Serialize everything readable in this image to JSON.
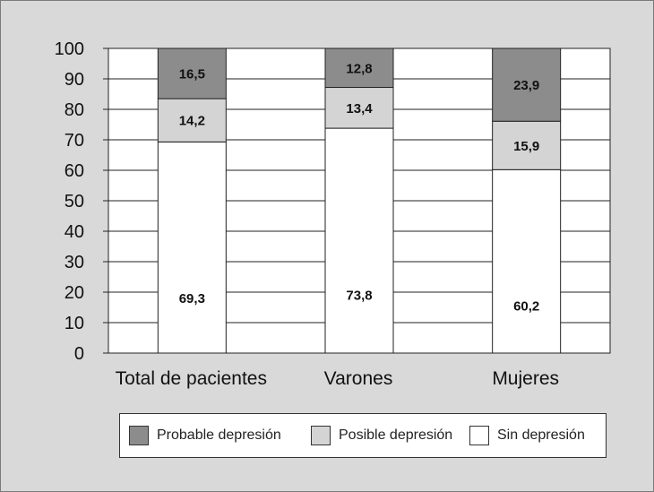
{
  "chart_data": {
    "type": "bar",
    "stacked": true,
    "categories": [
      "Total de pacientes",
      "Varones",
      "Mujeres"
    ],
    "series": [
      {
        "name": "Sin depresión",
        "values": [
          69.3,
          73.8,
          60.2
        ],
        "labels": [
          "69,3",
          "73,8",
          "60,2"
        ],
        "color": "#ffffff"
      },
      {
        "name": "Posible depresión",
        "values": [
          14.2,
          13.4,
          15.9
        ],
        "labels": [
          "14,2",
          "13,4",
          "15,9"
        ],
        "color": "#d4d4d4"
      },
      {
        "name": "Probable depresión",
        "values": [
          16.5,
          12.8,
          23.9
        ],
        "labels": [
          "16,5",
          "12,8",
          "23,9"
        ],
        "color": "#8c8c8c"
      }
    ],
    "ylim": [
      0,
      100
    ],
    "yticks": [
      "0",
      "10",
      "20",
      "30",
      "40",
      "50",
      "60",
      "70",
      "80",
      "90",
      "100"
    ],
    "title": "",
    "xlabel": "",
    "ylabel": "",
    "grid": true,
    "legend_position": "bottom",
    "legend_order": [
      "Probable depresión",
      "Posible depresión",
      "Sin depresión"
    ],
    "plot_background": "#ffffff",
    "figure_background": "#d9d9da"
  }
}
